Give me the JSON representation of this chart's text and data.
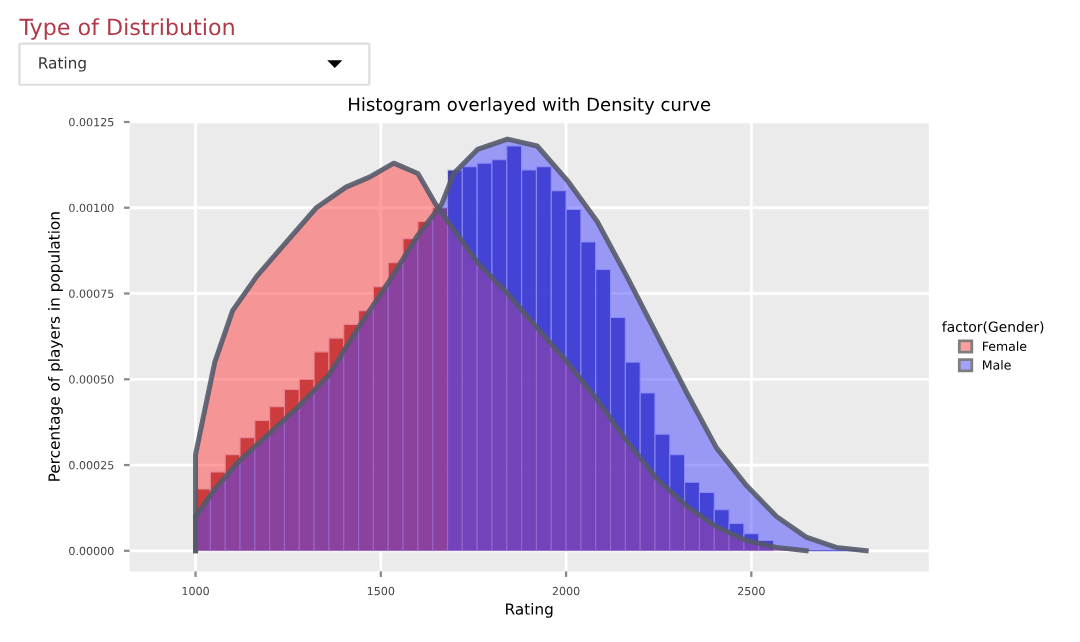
{
  "chart_data": {
    "type": "histogram",
    "title": "Histogram overlayed with Density curve",
    "xlabel": "Rating",
    "ylabel": "Percentage of players in population",
    "legend_title": "factor(Gender)",
    "xlim": [
      822,
      2979
    ],
    "ylim": [
      -6e-05,
      0.00125
    ],
    "xticks": [
      1000,
      1500,
      2000,
      2500
    ],
    "yticks": [
      {
        "value": 0,
        "label": "0.00000"
      },
      {
        "value": 0.00025,
        "label": "0.00025"
      },
      {
        "value": 0.0005,
        "label": "0.00050"
      },
      {
        "value": 0.00075,
        "label": "0.00075"
      },
      {
        "value": 0.001,
        "label": "0.00100"
      },
      {
        "value": 0.00125,
        "label": "0.00125"
      }
    ],
    "grid": true,
    "legend": "right",
    "annotations": [
      "Type of Distribution",
      "Rating"
    ],
    "series": [
      {
        "color": "#2020a0",
        "bins": [
          1680,
          1720,
          1760,
          1800,
          1840,
          1880,
          1920,
          1960,
          2000,
          2040,
          2080,
          2120,
          2160,
          2200,
          2240,
          2280,
          2320,
          2360,
          2400,
          2440,
          2480,
          2520,
          2560,
          2600,
          2640,
          2680,
          2720,
          2760,
          2800
        ],
        "values": [
          0.00111,
          0.00112,
          0.00113,
          0.00114,
          0.00118,
          0.00111,
          0.00112,
          0.00105,
          0.000995,
          0.0009,
          0.00082,
          0.00068,
          0.00055,
          0.00046,
          0.00034,
          0.00028,
          0.0002,
          0.00017,
          0.00012,
          8e-05,
          5e-05,
          3e-05,
          null,
          null,
          0,
          0,
          0,
          0
        ]
      },
      {
        "color": "#8b1a1a",
        "bins": [
          1000,
          1040,
          1080,
          1120,
          1160,
          1200,
          1240,
          1280,
          1320,
          1360,
          1400,
          1440,
          1480,
          1520,
          1560,
          1600,
          1640,
          1680
        ],
        "values": [
          0.00018,
          0.00023,
          0.00028,
          0.00033,
          0.00038,
          0.00042,
          0.00047,
          0.0005,
          0.00058,
          0.00062,
          0.00066,
          0.0007,
          0.00077,
          0.00084,
          0.00091,
          0.00096,
          0.001
        ]
      },
      {
        "type": "area",
        "name": "Female",
        "color": "#ff4040",
        "x": [
          1000,
          1000,
          1019,
          1052,
          1100,
          1165,
          1245,
          1326,
          1406,
          1471,
          1535,
          1600,
          1648,
          1761,
          1842,
          1922,
          2003,
          2084,
          2164,
          2245,
          2326,
          2406,
          2487,
          2568,
          2648
        ],
        "values": [
          0,
          0.00028,
          0.00038,
          0.00055,
          0.0007,
          0.0008,
          0.0009,
          0.001,
          0.00106,
          0.00109,
          0.00113,
          0.0011,
          0.00101,
          0.00084,
          0.00075,
          0.00065,
          0.00055,
          0.00044,
          0.00032,
          0.00021,
          0.00013,
          7e-05,
          3e-05,
          1e-05,
          0
        ]
      },
      {
        "type": "area",
        "name": "Male",
        "color": "#4848ff",
        "x": [
          1000,
          1000,
          1052,
          1116,
          1197,
          1277,
          1358,
          1439,
          1519,
          1600,
          1664,
          1697,
          1761,
          1842,
          1922,
          2003,
          2084,
          2164,
          2245,
          2326,
          2406,
          2487,
          2568,
          2648,
          2729,
          2810
        ],
        "values": [
          0,
          0.0001,
          0.00018,
          0.00026,
          0.00034,
          0.00042,
          0.00051,
          0.00065,
          0.00078,
          0.00092,
          0.00101,
          0.0011,
          0.00117,
          0.0012,
          0.00118,
          0.00108,
          0.00096,
          0.0008,
          0.00063,
          0.00046,
          0.0003,
          0.00019,
          0.0001,
          4e-05,
          1e-05,
          0
        ]
      }
    ]
  }
}
